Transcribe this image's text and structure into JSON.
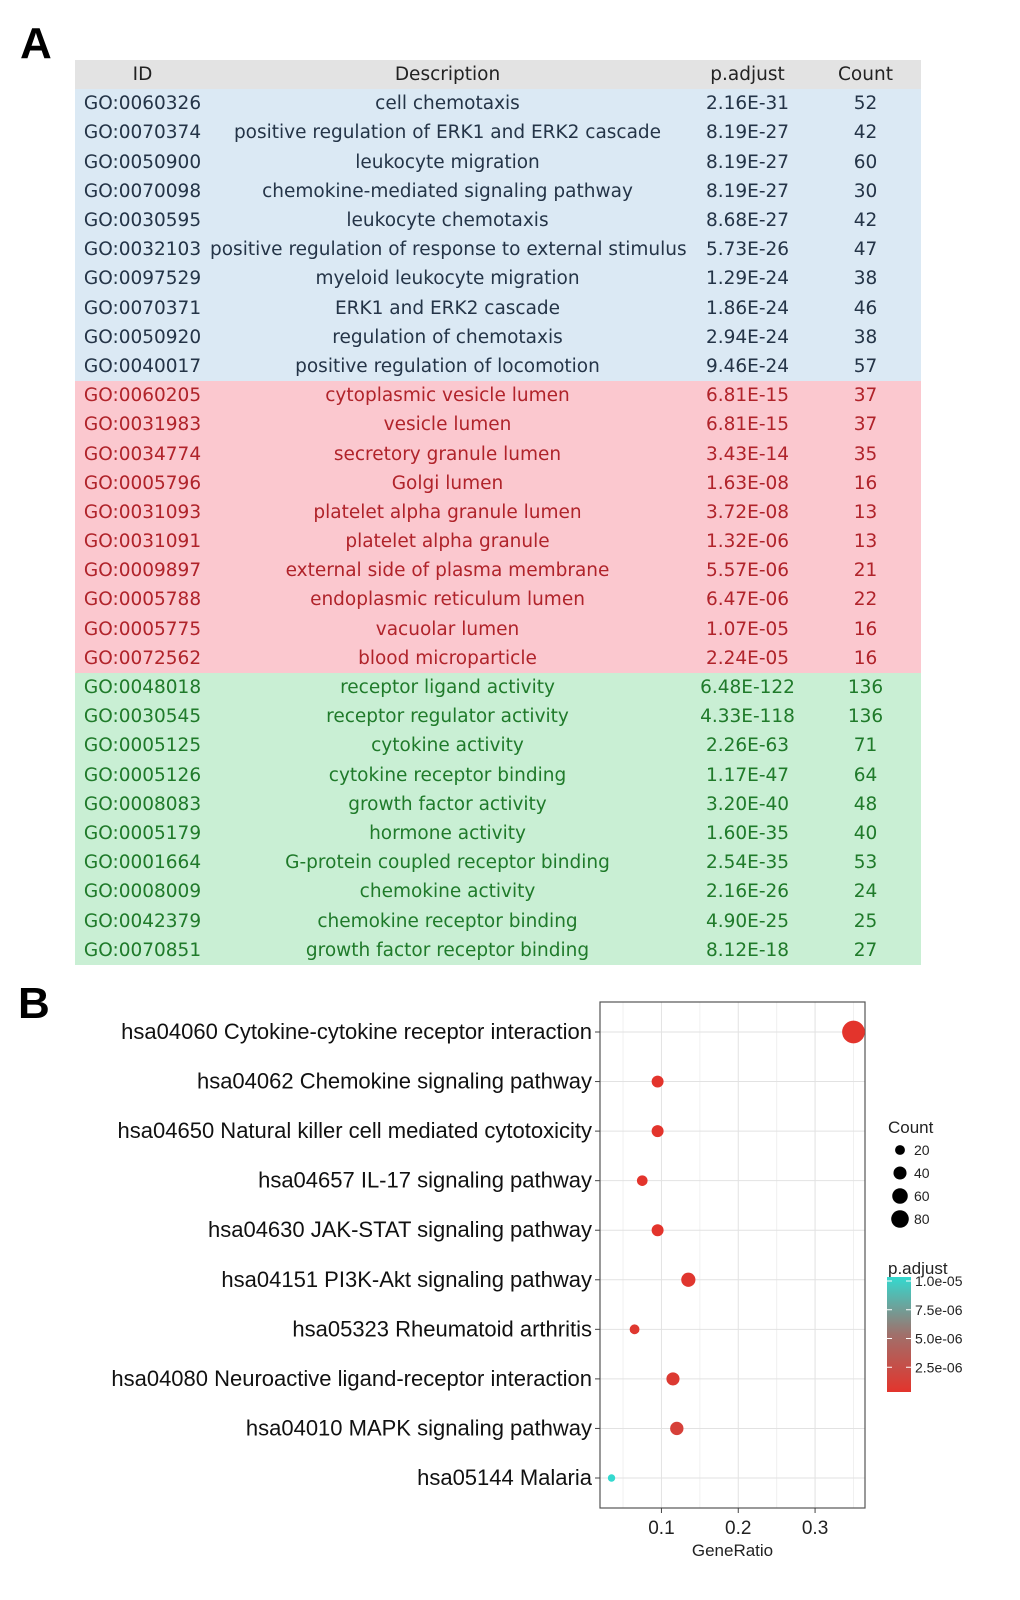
{
  "panel_a_label": "A",
  "panel_b_label": "B",
  "go_table": {
    "headers": [
      "ID",
      "Description",
      "p.adjust",
      "Count"
    ],
    "group_colors": {
      "bp_bg": "#dbe9f4",
      "bp_text": "#243447",
      "cc_bg": "#fbc8cf",
      "cc_text": "#b0232a",
      "mf_bg": "#c9efd4",
      "mf_text": "#1f7a2a"
    },
    "rows": [
      {
        "group": "bp",
        "id": "GO:0060326",
        "desc": "cell chemotaxis",
        "p": "2.16E-31",
        "count": "52"
      },
      {
        "group": "bp",
        "id": "GO:0070374",
        "desc": "positive regulation of ERK1 and ERK2 cascade",
        "p": "8.19E-27",
        "count": "42"
      },
      {
        "group": "bp",
        "id": "GO:0050900",
        "desc": "leukocyte migration",
        "p": "8.19E-27",
        "count": "60"
      },
      {
        "group": "bp",
        "id": "GO:0070098",
        "desc": "chemokine-mediated signaling pathway",
        "p": "8.19E-27",
        "count": "30"
      },
      {
        "group": "bp",
        "id": "GO:0030595",
        "desc": "leukocyte chemotaxis",
        "p": "8.68E-27",
        "count": "42"
      },
      {
        "group": "bp",
        "id": "GO:0032103",
        "desc": "positive regulation of response to external stimulus",
        "p": "5.73E-26",
        "count": "47"
      },
      {
        "group": "bp",
        "id": "GO:0097529",
        "desc": "myeloid leukocyte migration",
        "p": "1.29E-24",
        "count": "38"
      },
      {
        "group": "bp",
        "id": "GO:0070371",
        "desc": "ERK1 and ERK2 cascade",
        "p": "1.86E-24",
        "count": "46"
      },
      {
        "group": "bp",
        "id": "GO:0050920",
        "desc": "regulation of chemotaxis",
        "p": "2.94E-24",
        "count": "38"
      },
      {
        "group": "bp",
        "id": "GO:0040017",
        "desc": "positive regulation of locomotion",
        "p": "9.46E-24",
        "count": "57"
      },
      {
        "group": "cc",
        "id": "GO:0060205",
        "desc": "cytoplasmic vesicle lumen",
        "p": "6.81E-15",
        "count": "37"
      },
      {
        "group": "cc",
        "id": "GO:0031983",
        "desc": "vesicle lumen",
        "p": "6.81E-15",
        "count": "37"
      },
      {
        "group": "cc",
        "id": "GO:0034774",
        "desc": "secretory granule lumen",
        "p": "3.43E-14",
        "count": "35"
      },
      {
        "group": "cc",
        "id": "GO:0005796",
        "desc": "Golgi lumen",
        "p": "1.63E-08",
        "count": "16"
      },
      {
        "group": "cc",
        "id": "GO:0031093",
        "desc": "platelet alpha granule lumen",
        "p": "3.72E-08",
        "count": "13"
      },
      {
        "group": "cc",
        "id": "GO:0031091",
        "desc": "platelet alpha granule",
        "p": "1.32E-06",
        "count": "13"
      },
      {
        "group": "cc",
        "id": "GO:0009897",
        "desc": "external side of plasma membrane",
        "p": "5.57E-06",
        "count": "21"
      },
      {
        "group": "cc",
        "id": "GO:0005788",
        "desc": "endoplasmic reticulum lumen",
        "p": "6.47E-06",
        "count": "22"
      },
      {
        "group": "cc",
        "id": "GO:0005775",
        "desc": "vacuolar lumen",
        "p": "1.07E-05",
        "count": "16"
      },
      {
        "group": "cc",
        "id": "GO:0072562",
        "desc": "blood microparticle",
        "p": "2.24E-05",
        "count": "16"
      },
      {
        "group": "mf",
        "id": "GO:0048018",
        "desc": "receptor ligand activity",
        "p": "6.48E-122",
        "count": "136"
      },
      {
        "group": "mf",
        "id": "GO:0030545",
        "desc": "receptor regulator activity",
        "p": "4.33E-118",
        "count": "136"
      },
      {
        "group": "mf",
        "id": "GO:0005125",
        "desc": "cytokine activity",
        "p": "2.26E-63",
        "count": "71"
      },
      {
        "group": "mf",
        "id": "GO:0005126",
        "desc": "cytokine receptor binding",
        "p": "1.17E-47",
        "count": "64"
      },
      {
        "group": "mf",
        "id": "GO:0008083",
        "desc": "growth factor activity",
        "p": "3.20E-40",
        "count": "48"
      },
      {
        "group": "mf",
        "id": "GO:0005179",
        "desc": "hormone activity",
        "p": "1.60E-35",
        "count": "40"
      },
      {
        "group": "mf",
        "id": "GO:0001664",
        "desc": "G-protein coupled receptor binding",
        "p": "2.54E-35",
        "count": "53"
      },
      {
        "group": "mf",
        "id": "GO:0008009",
        "desc": "chemokine activity",
        "p": "2.16E-26",
        "count": "24"
      },
      {
        "group": "mf",
        "id": "GO:0042379",
        "desc": "chemokine receptor binding",
        "p": "4.90E-25",
        "count": "25"
      },
      {
        "group": "mf",
        "id": "GO:0070851",
        "desc": "growth factor receptor binding",
        "p": "8.12E-18",
        "count": "27"
      }
    ]
  },
  "chart_data": {
    "type": "scatter",
    "title": "",
    "xlabel": "GeneRatio",
    "ylabel": "",
    "xlim": [
      0.02,
      0.365
    ],
    "xticks": [
      0.1,
      0.2,
      0.3
    ],
    "xtick_labels": [
      "0.1",
      "0.2",
      "0.3"
    ],
    "grid": true,
    "categories": [
      "hsa04060 Cytokine-cytokine receptor interaction",
      "hsa04062 Chemokine signaling pathway",
      "hsa04650 Natural killer cell mediated cytotoxicity",
      "hsa04657 IL-17 signaling pathway",
      "hsa04630 JAK-STAT signaling pathway",
      "hsa04151 PI3K-Akt signaling pathway",
      "hsa05323 Rheumatoid arthritis",
      "hsa04080 Neuroactive ligand-receptor interaction",
      "hsa04010 MAPK signaling pathway",
      "hsa05144 Malaria"
    ],
    "gene_ratio": [
      0.35,
      0.095,
      0.095,
      0.075,
      0.095,
      0.135,
      0.065,
      0.115,
      0.12,
      0.035
    ],
    "count": [
      88,
      24,
      24,
      19,
      24,
      34,
      16,
      29,
      30,
      9
    ],
    "p_adjust": [
      1e-40,
      1e-15,
      1e-12,
      1e-10,
      1e-09,
      2e-07,
      3e-07,
      5e-07,
      1e-06,
      1e-05
    ],
    "size_legend": {
      "title": "Count",
      "values": [
        20,
        40,
        60,
        80
      ],
      "labels": [
        "20",
        "40",
        "60",
        "80"
      ]
    },
    "color_legend": {
      "title": "p.adjust",
      "ticks": [
        1e-05,
        7.5e-06,
        5e-06,
        2.5e-06
      ],
      "labels": [
        "1.0e-05",
        "7.5e-06",
        "5.0e-06",
        "2.5e-06"
      ],
      "range": [
        0,
        1e-05
      ],
      "low_color": "#e3342c",
      "high_color": "#34d9cf"
    }
  }
}
